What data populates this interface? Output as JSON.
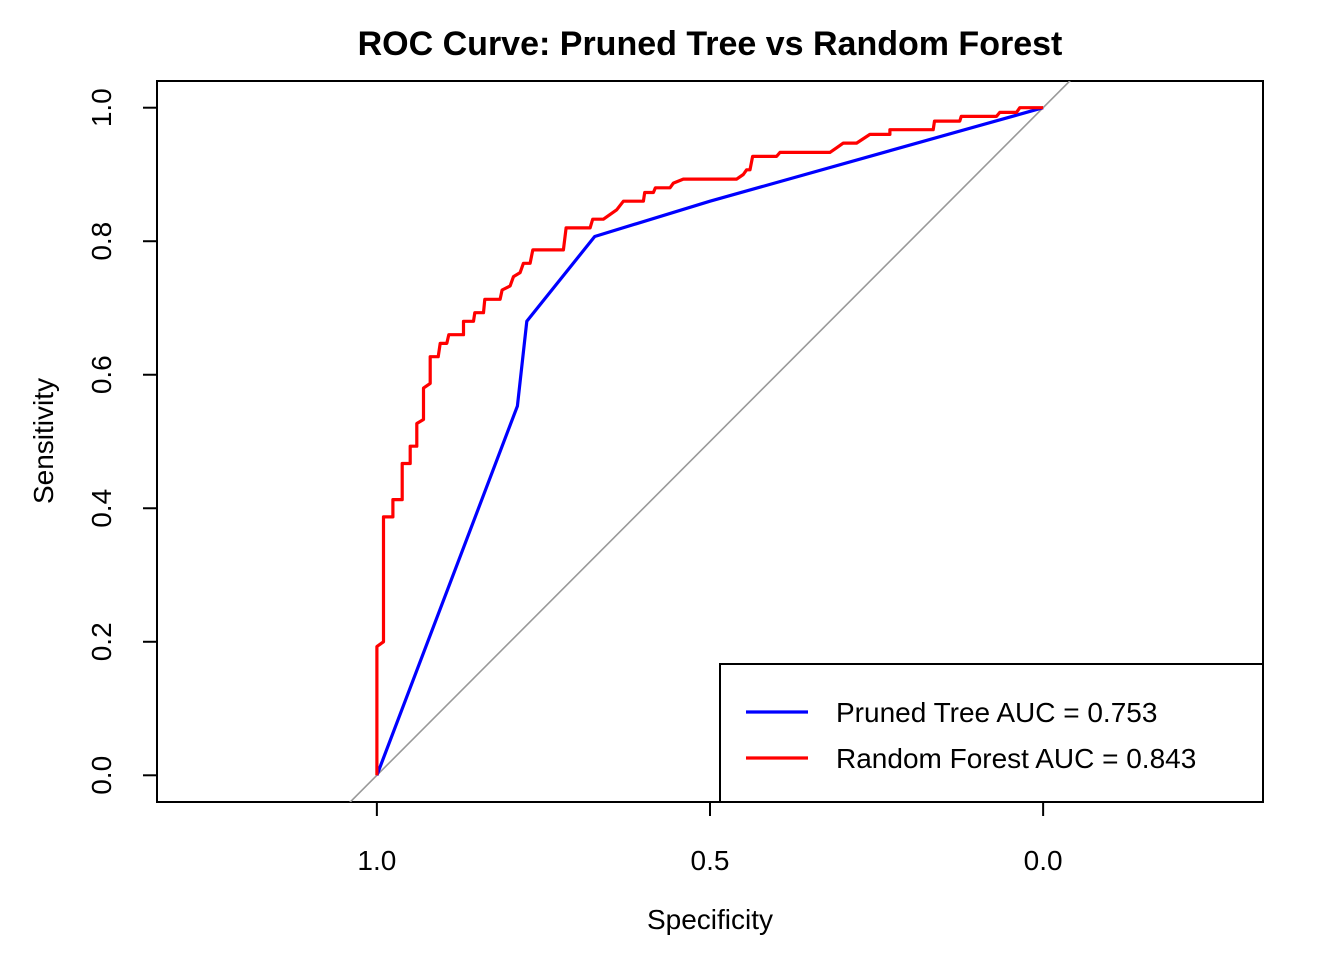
{
  "chart_data": {
    "type": "line",
    "title": "ROC Curve: Pruned Tree vs Random Forest",
    "xlabel": "Specificity",
    "ylabel": "Sensitivity",
    "x_reversed": true,
    "xlim": [
      1.33,
      -0.33
    ],
    "ylim": [
      -0.04,
      1.04
    ],
    "x_ticks": [
      1.0,
      0.5,
      0.0
    ],
    "x_tick_labels": [
      "1.0",
      "0.5",
      "0.0"
    ],
    "y_ticks": [
      0.0,
      0.2,
      0.4,
      0.6,
      0.8,
      1.0
    ],
    "y_tick_labels": [
      "0.0",
      "0.2",
      "0.4",
      "0.6",
      "0.8",
      "1.0"
    ],
    "grid": false,
    "legend_position": "bottom-right",
    "reference_line": {
      "from": [
        1.0,
        0.0
      ],
      "to": [
        0.0,
        1.0
      ],
      "color": "#999999"
    },
    "series": [
      {
        "name": "Pruned Tree AUC = 0.753",
        "color": "#0000ff",
        "points": [
          [
            1.0,
            0.0
          ],
          [
            0.789,
            0.553
          ],
          [
            0.775,
            0.68
          ],
          [
            0.673,
            0.807
          ],
          [
            0.5,
            0.86
          ],
          [
            0.0,
            1.0
          ]
        ]
      },
      {
        "name": "Random Forest AUC = 0.843",
        "color": "#ff0000",
        "points": [
          [
            1.0,
            0.0
          ],
          [
            1.0,
            0.193
          ],
          [
            0.99,
            0.2
          ],
          [
            0.99,
            0.387
          ],
          [
            0.976,
            0.387
          ],
          [
            0.976,
            0.413
          ],
          [
            0.962,
            0.413
          ],
          [
            0.962,
            0.467
          ],
          [
            0.95,
            0.467
          ],
          [
            0.95,
            0.493
          ],
          [
            0.94,
            0.493
          ],
          [
            0.94,
            0.527
          ],
          [
            0.93,
            0.533
          ],
          [
            0.93,
            0.58
          ],
          [
            0.92,
            0.587
          ],
          [
            0.92,
            0.627
          ],
          [
            0.908,
            0.627
          ],
          [
            0.905,
            0.647
          ],
          [
            0.895,
            0.647
          ],
          [
            0.892,
            0.66
          ],
          [
            0.87,
            0.66
          ],
          [
            0.87,
            0.68
          ],
          [
            0.855,
            0.68
          ],
          [
            0.853,
            0.693
          ],
          [
            0.84,
            0.693
          ],
          [
            0.838,
            0.713
          ],
          [
            0.815,
            0.713
          ],
          [
            0.812,
            0.727
          ],
          [
            0.8,
            0.733
          ],
          [
            0.795,
            0.747
          ],
          [
            0.785,
            0.753
          ],
          [
            0.78,
            0.767
          ],
          [
            0.77,
            0.767
          ],
          [
            0.766,
            0.787
          ],
          [
            0.72,
            0.787
          ],
          [
            0.716,
            0.82
          ],
          [
            0.68,
            0.82
          ],
          [
            0.676,
            0.833
          ],
          [
            0.66,
            0.833
          ],
          [
            0.64,
            0.847
          ],
          [
            0.63,
            0.86
          ],
          [
            0.6,
            0.86
          ],
          [
            0.598,
            0.873
          ],
          [
            0.585,
            0.873
          ],
          [
            0.582,
            0.88
          ],
          [
            0.56,
            0.88
          ],
          [
            0.555,
            0.887
          ],
          [
            0.54,
            0.893
          ],
          [
            0.46,
            0.893
          ],
          [
            0.45,
            0.9
          ],
          [
            0.445,
            0.907
          ],
          [
            0.44,
            0.907
          ],
          [
            0.436,
            0.927
          ],
          [
            0.4,
            0.927
          ],
          [
            0.395,
            0.933
          ],
          [
            0.32,
            0.933
          ],
          [
            0.31,
            0.94
          ],
          [
            0.3,
            0.947
          ],
          [
            0.28,
            0.947
          ],
          [
            0.26,
            0.96
          ],
          [
            0.23,
            0.96
          ],
          [
            0.23,
            0.967
          ],
          [
            0.165,
            0.967
          ],
          [
            0.163,
            0.98
          ],
          [
            0.125,
            0.98
          ],
          [
            0.123,
            0.987
          ],
          [
            0.07,
            0.987
          ],
          [
            0.065,
            0.993
          ],
          [
            0.04,
            0.993
          ],
          [
            0.035,
            1.0
          ],
          [
            0.0,
            1.0
          ]
        ]
      }
    ]
  }
}
